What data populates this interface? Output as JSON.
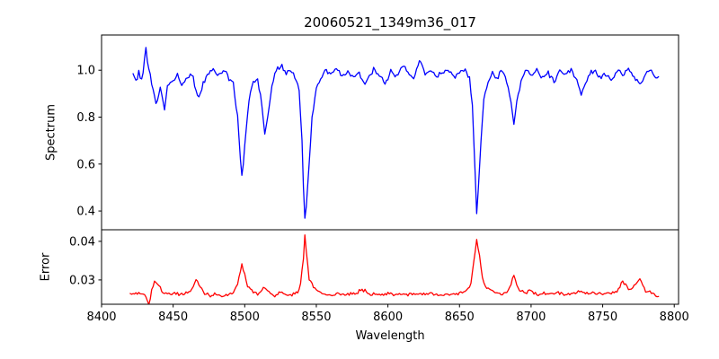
{
  "title": "20060521_1349m36_017",
  "colors": {
    "spectrum_line": "#0000ff",
    "error_line": "#ff0000",
    "axes": "#000000",
    "text": "#000000",
    "background": "#ffffff"
  },
  "xaxis": {
    "label": "Wavelength",
    "tick_values": [
      8400,
      8450,
      8500,
      8550,
      8600,
      8650,
      8700,
      8750,
      8800
    ],
    "tick_labels": [
      "8400",
      "8450",
      "8500",
      "8550",
      "8600",
      "8650",
      "8700",
      "8750",
      "8800"
    ],
    "range": [
      8400,
      8803
    ]
  },
  "chart_data": [
    {
      "type": "line",
      "name": "spectrum",
      "ylabel": "Spectrum",
      "color": "#0000ff",
      "ylim": [
        0.32,
        1.15
      ],
      "ytick_values": [
        0.4,
        0.6,
        0.8,
        1.0
      ],
      "ytick_labels": [
        "0.4",
        "0.6",
        "0.8",
        "1.0"
      ],
      "x_start": 8422,
      "x_end": 8789,
      "x_step": 1,
      "noise_amplitude": 0.014,
      "noise_seed": 20060521,
      "anchors": [
        [
          8422,
          0.985
        ],
        [
          8424,
          0.955
        ],
        [
          8426,
          0.99
        ],
        [
          8428,
          0.955
        ],
        [
          8431,
          1.09
        ],
        [
          8433,
          1.0
        ],
        [
          8436,
          0.92
        ],
        [
          8438,
          0.85
        ],
        [
          8441,
          0.93
        ],
        [
          8444,
          0.83
        ],
        [
          8446,
          0.93
        ],
        [
          8450,
          0.955
        ],
        [
          8453,
          0.98
        ],
        [
          8456,
          0.93
        ],
        [
          8460,
          0.975
        ],
        [
          8463,
          0.99
        ],
        [
          8466,
          0.91
        ],
        [
          8468,
          0.88
        ],
        [
          8471,
          0.94
        ],
        [
          8474,
          0.985
        ],
        [
          8478,
          1.0
        ],
        [
          8482,
          0.975
        ],
        [
          8486,
          1.0
        ],
        [
          8489,
          0.965
        ],
        [
          8492,
          0.94
        ],
        [
          8495,
          0.8
        ],
        [
          8497,
          0.62
        ],
        [
          8498,
          0.55
        ],
        [
          8499,
          0.6
        ],
        [
          8501,
          0.75
        ],
        [
          8503,
          0.88
        ],
        [
          8506,
          0.95
        ],
        [
          8509,
          0.965
        ],
        [
          8512,
          0.85
        ],
        [
          8514,
          0.73
        ],
        [
          8516,
          0.8
        ],
        [
          8519,
          0.93
        ],
        [
          8522,
          1.0
        ],
        [
          8526,
          1.02
        ],
        [
          8529,
          0.985
        ],
        [
          8532,
          1.005
        ],
        [
          8535,
          0.975
        ],
        [
          8538,
          0.92
        ],
        [
          8540,
          0.7
        ],
        [
          8541,
          0.5
        ],
        [
          8542,
          0.37
        ],
        [
          8543,
          0.42
        ],
        [
          8545,
          0.6
        ],
        [
          8547,
          0.8
        ],
        [
          8550,
          0.92
        ],
        [
          8553,
          0.965
        ],
        [
          8556,
          1.0
        ],
        [
          8560,
          0.98
        ],
        [
          8564,
          1.01
        ],
        [
          8568,
          0.975
        ],
        [
          8572,
          1.0
        ],
        [
          8576,
          0.965
        ],
        [
          8580,
          0.99
        ],
        [
          8584,
          0.93
        ],
        [
          8586,
          0.97
        ],
        [
          8590,
          1.0
        ],
        [
          8594,
          0.975
        ],
        [
          8598,
          0.94
        ],
        [
          8602,
          1.0
        ],
        [
          8606,
          0.975
        ],
        [
          8610,
          1.02
        ],
        [
          8614,
          0.985
        ],
        [
          8618,
          0.965
        ],
        [
          8622,
          1.04
        ],
        [
          8626,
          0.985
        ],
        [
          8630,
          1.0
        ],
        [
          8634,
          0.97
        ],
        [
          8638,
          0.99
        ],
        [
          8642,
          1.0
        ],
        [
          8646,
          0.97
        ],
        [
          8650,
          0.99
        ],
        [
          8654,
          1.0
        ],
        [
          8657,
          0.965
        ],
        [
          8659,
          0.85
        ],
        [
          8661,
          0.55
        ],
        [
          8662,
          0.39
        ],
        [
          8663,
          0.48
        ],
        [
          8665,
          0.7
        ],
        [
          8667,
          0.88
        ],
        [
          8670,
          0.95
        ],
        [
          8673,
          0.985
        ],
        [
          8676,
          0.965
        ],
        [
          8680,
          1.0
        ],
        [
          8683,
          0.955
        ],
        [
          8686,
          0.86
        ],
        [
          8688,
          0.77
        ],
        [
          8690,
          0.86
        ],
        [
          8693,
          0.955
        ],
        [
          8696,
          1.0
        ],
        [
          8700,
          0.975
        ],
        [
          8704,
          1.0
        ],
        [
          8708,
          0.965
        ],
        [
          8712,
          0.99
        ],
        [
          8716,
          0.95
        ],
        [
          8720,
          1.0
        ],
        [
          8724,
          0.98
        ],
        [
          8728,
          1.0
        ],
        [
          8732,
          0.955
        ],
        [
          8735,
          0.9
        ],
        [
          8737,
          0.93
        ],
        [
          8740,
          0.975
        ],
        [
          8744,
          1.0
        ],
        [
          8748,
          0.965
        ],
        [
          8752,
          0.985
        ],
        [
          8756,
          0.955
        ],
        [
          8760,
          1.0
        ],
        [
          8764,
          0.98
        ],
        [
          8768,
          1.01
        ],
        [
          8772,
          0.97
        ],
        [
          8776,
          0.94
        ],
        [
          8780,
          0.985
        ],
        [
          8784,
          1.0
        ],
        [
          8787,
          0.965
        ],
        [
          8789,
          0.975
        ]
      ]
    },
    {
      "type": "line",
      "name": "error",
      "ylabel": "Error",
      "color": "#ff0000",
      "ylim": [
        0.0237,
        0.043
      ],
      "ytick_values": [
        0.03,
        0.04
      ],
      "ytick_labels": [
        "0.03",
        "0.04"
      ],
      "x_start": 8420,
      "x_end": 8789,
      "x_step": 1,
      "noise_amplitude": 0.00055,
      "noise_seed": 1349,
      "anchors": [
        [
          8420,
          0.0263
        ],
        [
          8424,
          0.0268
        ],
        [
          8428,
          0.0262
        ],
        [
          8431,
          0.0258
        ],
        [
          8433,
          0.0235
        ],
        [
          8435,
          0.0275
        ],
        [
          8437,
          0.0295
        ],
        [
          8440,
          0.0285
        ],
        [
          8443,
          0.0268
        ],
        [
          8447,
          0.0262
        ],
        [
          8451,
          0.0265
        ],
        [
          8455,
          0.0262
        ],
        [
          8459,
          0.0266
        ],
        [
          8463,
          0.0272
        ],
        [
          8466,
          0.0302
        ],
        [
          8469,
          0.0282
        ],
        [
          8472,
          0.0265
        ],
        [
          8476,
          0.026
        ],
        [
          8480,
          0.0263
        ],
        [
          8484,
          0.0258
        ],
        [
          8488,
          0.0261
        ],
        [
          8492,
          0.0268
        ],
        [
          8495,
          0.0288
        ],
        [
          8497,
          0.0322
        ],
        [
          8498,
          0.034
        ],
        [
          8500,
          0.0312
        ],
        [
          8502,
          0.0284
        ],
        [
          8505,
          0.027
        ],
        [
          8509,
          0.0264
        ],
        [
          8512,
          0.0274
        ],
        [
          8514,
          0.0279
        ],
        [
          8517,
          0.0267
        ],
        [
          8521,
          0.0261
        ],
        [
          8525,
          0.027
        ],
        [
          8529,
          0.0261
        ],
        [
          8533,
          0.026
        ],
        [
          8537,
          0.0268
        ],
        [
          8539,
          0.0292
        ],
        [
          8541,
          0.0358
        ],
        [
          8542,
          0.0415
        ],
        [
          8543,
          0.0378
        ],
        [
          8545,
          0.0304
        ],
        [
          8548,
          0.0284
        ],
        [
          8551,
          0.0272
        ],
        [
          8555,
          0.0264
        ],
        [
          8560,
          0.026
        ],
        [
          8565,
          0.0267
        ],
        [
          8570,
          0.0261
        ],
        [
          8575,
          0.0264
        ],
        [
          8580,
          0.027
        ],
        [
          8584,
          0.0272
        ],
        [
          8588,
          0.0261
        ],
        [
          8592,
          0.0264
        ],
        [
          8596,
          0.0262
        ],
        [
          8600,
          0.0267
        ],
        [
          8605,
          0.0261
        ],
        [
          8610,
          0.0264
        ],
        [
          8615,
          0.0261
        ],
        [
          8620,
          0.0267
        ],
        [
          8625,
          0.0262
        ],
        [
          8630,
          0.0264
        ],
        [
          8635,
          0.0259
        ],
        [
          8640,
          0.0264
        ],
        [
          8645,
          0.0261
        ],
        [
          8650,
          0.0266
        ],
        [
          8654,
          0.0271
        ],
        [
          8658,
          0.029
        ],
        [
          8660,
          0.0345
        ],
        [
          8662,
          0.0405
        ],
        [
          8664,
          0.0362
        ],
        [
          8666,
          0.0304
        ],
        [
          8668,
          0.0284
        ],
        [
          8671,
          0.0274
        ],
        [
          8675,
          0.0267
        ],
        [
          8680,
          0.0264
        ],
        [
          8684,
          0.0271
        ],
        [
          8688,
          0.031
        ],
        [
          8691,
          0.0279
        ],
        [
          8695,
          0.0267
        ],
        [
          8700,
          0.0271
        ],
        [
          8705,
          0.0263
        ],
        [
          8710,
          0.0266
        ],
        [
          8715,
          0.0262
        ],
        [
          8720,
          0.0267
        ],
        [
          8725,
          0.0262
        ],
        [
          8730,
          0.0266
        ],
        [
          8735,
          0.0272
        ],
        [
          8740,
          0.0263
        ],
        [
          8745,
          0.0267
        ],
        [
          8750,
          0.0262
        ],
        [
          8755,
          0.0268
        ],
        [
          8760,
          0.0272
        ],
        [
          8764,
          0.0295
        ],
        [
          8768,
          0.0276
        ],
        [
          8772,
          0.0282
        ],
        [
          8776,
          0.0305
        ],
        [
          8780,
          0.027
        ],
        [
          8784,
          0.0266
        ],
        [
          8787,
          0.0258
        ],
        [
          8789,
          0.0255
        ]
      ]
    }
  ]
}
